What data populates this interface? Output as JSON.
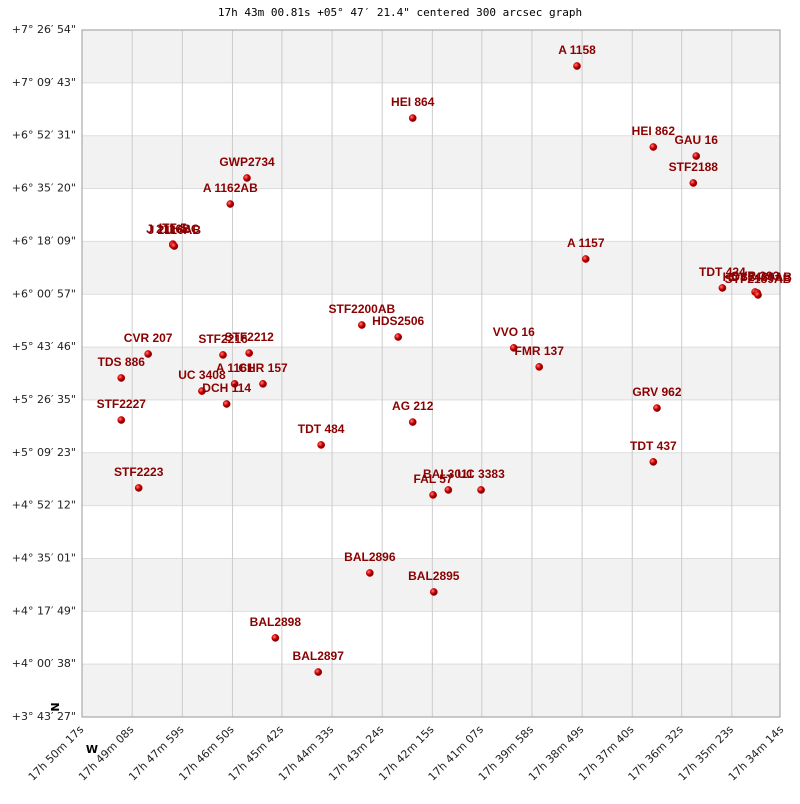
{
  "chart_data": {
    "type": "scatter",
    "title": "17h 43m 00.81s +05° 47′ 21.4\" centered 300 arcsec graph",
    "compass": {
      "north": "N",
      "west": "W"
    },
    "color": "#cc0000",
    "grid": true,
    "labels": [
      "A  1158",
      "HEI 864",
      "HEI 862",
      "GAU  16",
      "STF2188",
      "GWP2734",
      "A  1162AB",
      "ITF   5",
      "J  2116BC",
      "J  2116AB",
      "A  1157",
      "TDT 424",
      "CVR 393",
      "HDS2489AB",
      "STF2189AB",
      "STF2200AB",
      "HDS2506",
      "VVO  16",
      "FMR 137",
      "CVR 207",
      "STF2212",
      "STF2216",
      "TDS 886",
      "A  1161",
      "UC 3408",
      "CHR 157",
      "DCH 114",
      "STF2227",
      "AG  212",
      "GRV 962",
      "TDT 484",
      "TDT 437",
      "STF2223",
      "FAL  57",
      "BAL3011",
      "UC 3383",
      "BAL2896",
      "BAL2895",
      "BAL2898",
      "BAL2897"
    ],
    "x": [
      63536,
      63762,
      63431,
      63372,
      63376,
      63990,
      64013,
      64092,
      64092,
      64090,
      63524,
      63336,
      63291,
      63288,
      63287,
      63832,
      63782,
      63623,
      63588,
      64126,
      63987,
      64023,
      64163,
      64007,
      64052,
      63968,
      64018,
      64163,
      63762,
      63426,
      63888,
      63431,
      64139,
      63734,
      63713,
      63668,
      63821,
      63733,
      63951,
      63892
    ],
    "y": [
      7.253,
      6.971,
      6.814,
      6.765,
      6.619,
      6.646,
      6.505,
      6.288,
      6.283,
      6.277,
      6.207,
      6.05,
      6.028,
      6.023,
      6.012,
      5.849,
      5.784,
      5.725,
      5.622,
      5.692,
      5.697,
      5.687,
      5.562,
      5.53,
      5.491,
      5.53,
      5.421,
      5.334,
      5.323,
      5.399,
      5.199,
      5.107,
      4.966,
      4.928,
      4.955,
      4.955,
      4.505,
      4.402,
      4.153,
      3.968
    ],
    "xlim": [
      64217,
      63254
    ],
    "ylim": [
      3.7242,
      7.4483
    ],
    "xticks": [
      {
        "value": 64217,
        "label": "17h 50m 17s"
      },
      {
        "value": 64148,
        "label": "17h 49m 08s"
      },
      {
        "value": 64079,
        "label": "17h 47m 59s"
      },
      {
        "value": 64010,
        "label": "17h 46m 50s"
      },
      {
        "value": 63942,
        "label": "17h 45m 42s"
      },
      {
        "value": 63873,
        "label": "17h 44m 33s"
      },
      {
        "value": 63804,
        "label": "17h 43m 24s"
      },
      {
        "value": 63735,
        "label": "17h 42m 15s"
      },
      {
        "value": 63667,
        "label": "17h 41m 07s"
      },
      {
        "value": 63598,
        "label": "17h 39m 58s"
      },
      {
        "value": 63529,
        "label": "17h 38m 49s"
      },
      {
        "value": 63460,
        "label": "17h 37m 40s"
      },
      {
        "value": 63392,
        "label": "17h 36m 32s"
      },
      {
        "value": 63323,
        "label": "17h 35m 23s"
      },
      {
        "value": 63254,
        "label": "17h 34m 14s"
      }
    ],
    "yticks": [
      {
        "value": 7.4483,
        "label": "+7° 26′ 54\""
      },
      {
        "value": 7.1619,
        "label": "+7° 09′ 43\""
      },
      {
        "value": 6.8753,
        "label": "+6° 52′ 31\""
      },
      {
        "value": 6.5889,
        "label": "+6° 35′ 20\""
      },
      {
        "value": 6.3025,
        "label": "+6° 18′ 09\""
      },
      {
        "value": 6.0158,
        "label": "+6° 00′ 57\""
      },
      {
        "value": 5.7294,
        "label": "+5° 43′ 46\""
      },
      {
        "value": 5.4431,
        "label": "+5° 26′ 35\""
      },
      {
        "value": 5.1564,
        "label": "+5° 09′ 23\""
      },
      {
        "value": 4.87,
        "label": "+4° 52′ 12\""
      },
      {
        "value": 4.5836,
        "label": "+4° 35′ 01\""
      },
      {
        "value": 4.2969,
        "label": "+4° 17′ 49\""
      },
      {
        "value": 4.0106,
        "label": "+4° 00′ 38\""
      },
      {
        "value": 3.7242,
        "label": "+3° 43′ 27\""
      }
    ]
  }
}
